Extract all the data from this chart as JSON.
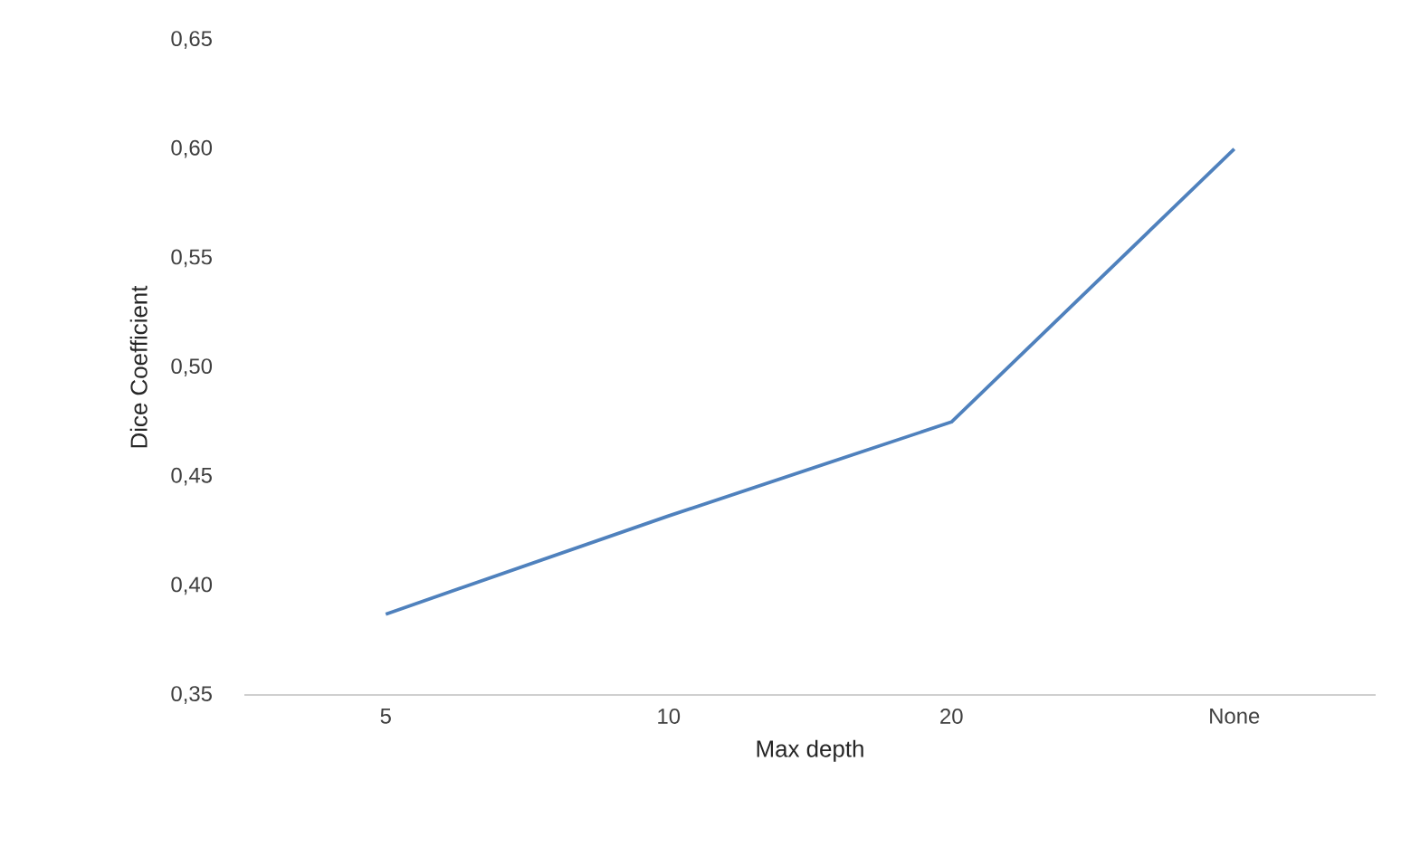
{
  "chart_data": {
    "type": "line",
    "xlabel": "Max depth",
    "ylabel": "Dice Coefficient",
    "categories": [
      "5",
      "10",
      "20",
      "None"
    ],
    "series": [
      {
        "color": "#4f81bd",
        "values": [
          0.387,
          0.432,
          0.475,
          0.6
        ]
      }
    ],
    "ylim": [
      0.35,
      0.65
    ],
    "yticks": [
      {
        "value": 0.35,
        "label": "0,35"
      },
      {
        "value": 0.4,
        "label": "0,40"
      },
      {
        "value": 0.45,
        "label": "0,45"
      },
      {
        "value": 0.5,
        "label": "0,50"
      },
      {
        "value": 0.55,
        "label": "0,55"
      },
      {
        "value": 0.6,
        "label": "0,60"
      },
      {
        "value": 0.65,
        "label": "0,65"
      }
    ],
    "grid": false,
    "legend": false,
    "marker": "none",
    "line_style": "solid"
  }
}
